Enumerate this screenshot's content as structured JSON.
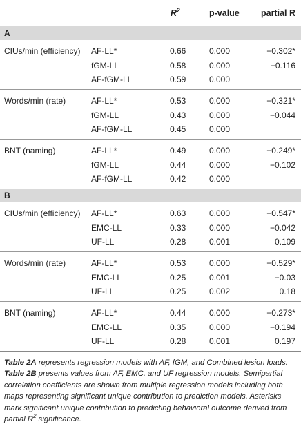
{
  "header": {
    "col_measure": "",
    "col_model": "",
    "col_r2_base": "R",
    "col_r2_sup": "2",
    "col_p": "p-value",
    "col_partial": "partial R"
  },
  "sections": [
    {
      "label": "A",
      "groups": [
        {
          "measure": "CIUs/min (efficiency)",
          "rows": [
            {
              "model": "AF-LL*",
              "r2": "0.66",
              "p": "0.000",
              "partial": "−0.302*"
            },
            {
              "model": "fGM-LL",
              "r2": "0.58",
              "p": "0.000",
              "partial": "−0.116"
            },
            {
              "model": "AF-fGM-LL",
              "r2": "0.59",
              "p": "0.000",
              "partial": ""
            }
          ]
        },
        {
          "measure": "Words/min (rate)",
          "rows": [
            {
              "model": "AF-LL*",
              "r2": "0.53",
              "p": "0.000",
              "partial": "−0.321*"
            },
            {
              "model": "fGM-LL",
              "r2": "0.43",
              "p": "0.000",
              "partial": "−0.044"
            },
            {
              "model": "AF-fGM-LL",
              "r2": "0.45",
              "p": "0.000",
              "partial": ""
            }
          ]
        },
        {
          "measure": "BNT (naming)",
          "rows": [
            {
              "model": "AF-LL*",
              "r2": "0.49",
              "p": "0.000",
              "partial": "−0.249*"
            },
            {
              "model": "fGM-LL",
              "r2": "0.44",
              "p": "0.000",
              "partial": "−0.102"
            },
            {
              "model": "AF-fGM-LL",
              "r2": "0.42",
              "p": "0.000",
              "partial": ""
            }
          ]
        }
      ]
    },
    {
      "label": "B",
      "groups": [
        {
          "measure": "CIUs/min (efficiency)",
          "rows": [
            {
              "model": "AF-LL*",
              "r2": "0.63",
              "p": "0.000",
              "partial": "−0.547*"
            },
            {
              "model": "EMC-LL",
              "r2": "0.33",
              "p": "0.000",
              "partial": "−0.042"
            },
            {
              "model": "UF-LL",
              "r2": "0.28",
              "p": "0.001",
              "partial": "0.109"
            }
          ]
        },
        {
          "measure": "Words/min (rate)",
          "rows": [
            {
              "model": "AF-LL*",
              "r2": "0.53",
              "p": "0.000",
              "partial": "−0.529*"
            },
            {
              "model": "EMC-LL",
              "r2": "0.25",
              "p": "0.001",
              "partial": "−0.03"
            },
            {
              "model": "UF-LL",
              "r2": "0.25",
              "p": "0.002",
              "partial": "0.18"
            }
          ]
        },
        {
          "measure": "BNT (naming)",
          "rows": [
            {
              "model": "AF-LL*",
              "r2": "0.44",
              "p": "0.000",
              "partial": "−0.273*"
            },
            {
              "model": "EMC-LL",
              "r2": "0.35",
              "p": "0.000",
              "partial": "−0.194"
            },
            {
              "model": "UF-LL",
              "r2": "0.28",
              "p": "0.001",
              "partial": "0.197"
            }
          ]
        }
      ]
    }
  ],
  "caption": {
    "t2a_label": "Table 2A",
    "t2a_text": " represents regression models with AF, fGM, and Combined lesion loads. ",
    "t2b_label": "Table 2B",
    "t2b_text": " presents values from AF, EMC, and UF regression models. Semipartial correlation coefficients are shown from multiple regression models including both maps representing significant unique contribution to prediction models. Asterisks mark significant unique contribution to predicting behavioral outcome derived from partial R",
    "sup": "2",
    "end_text": " significance."
  }
}
